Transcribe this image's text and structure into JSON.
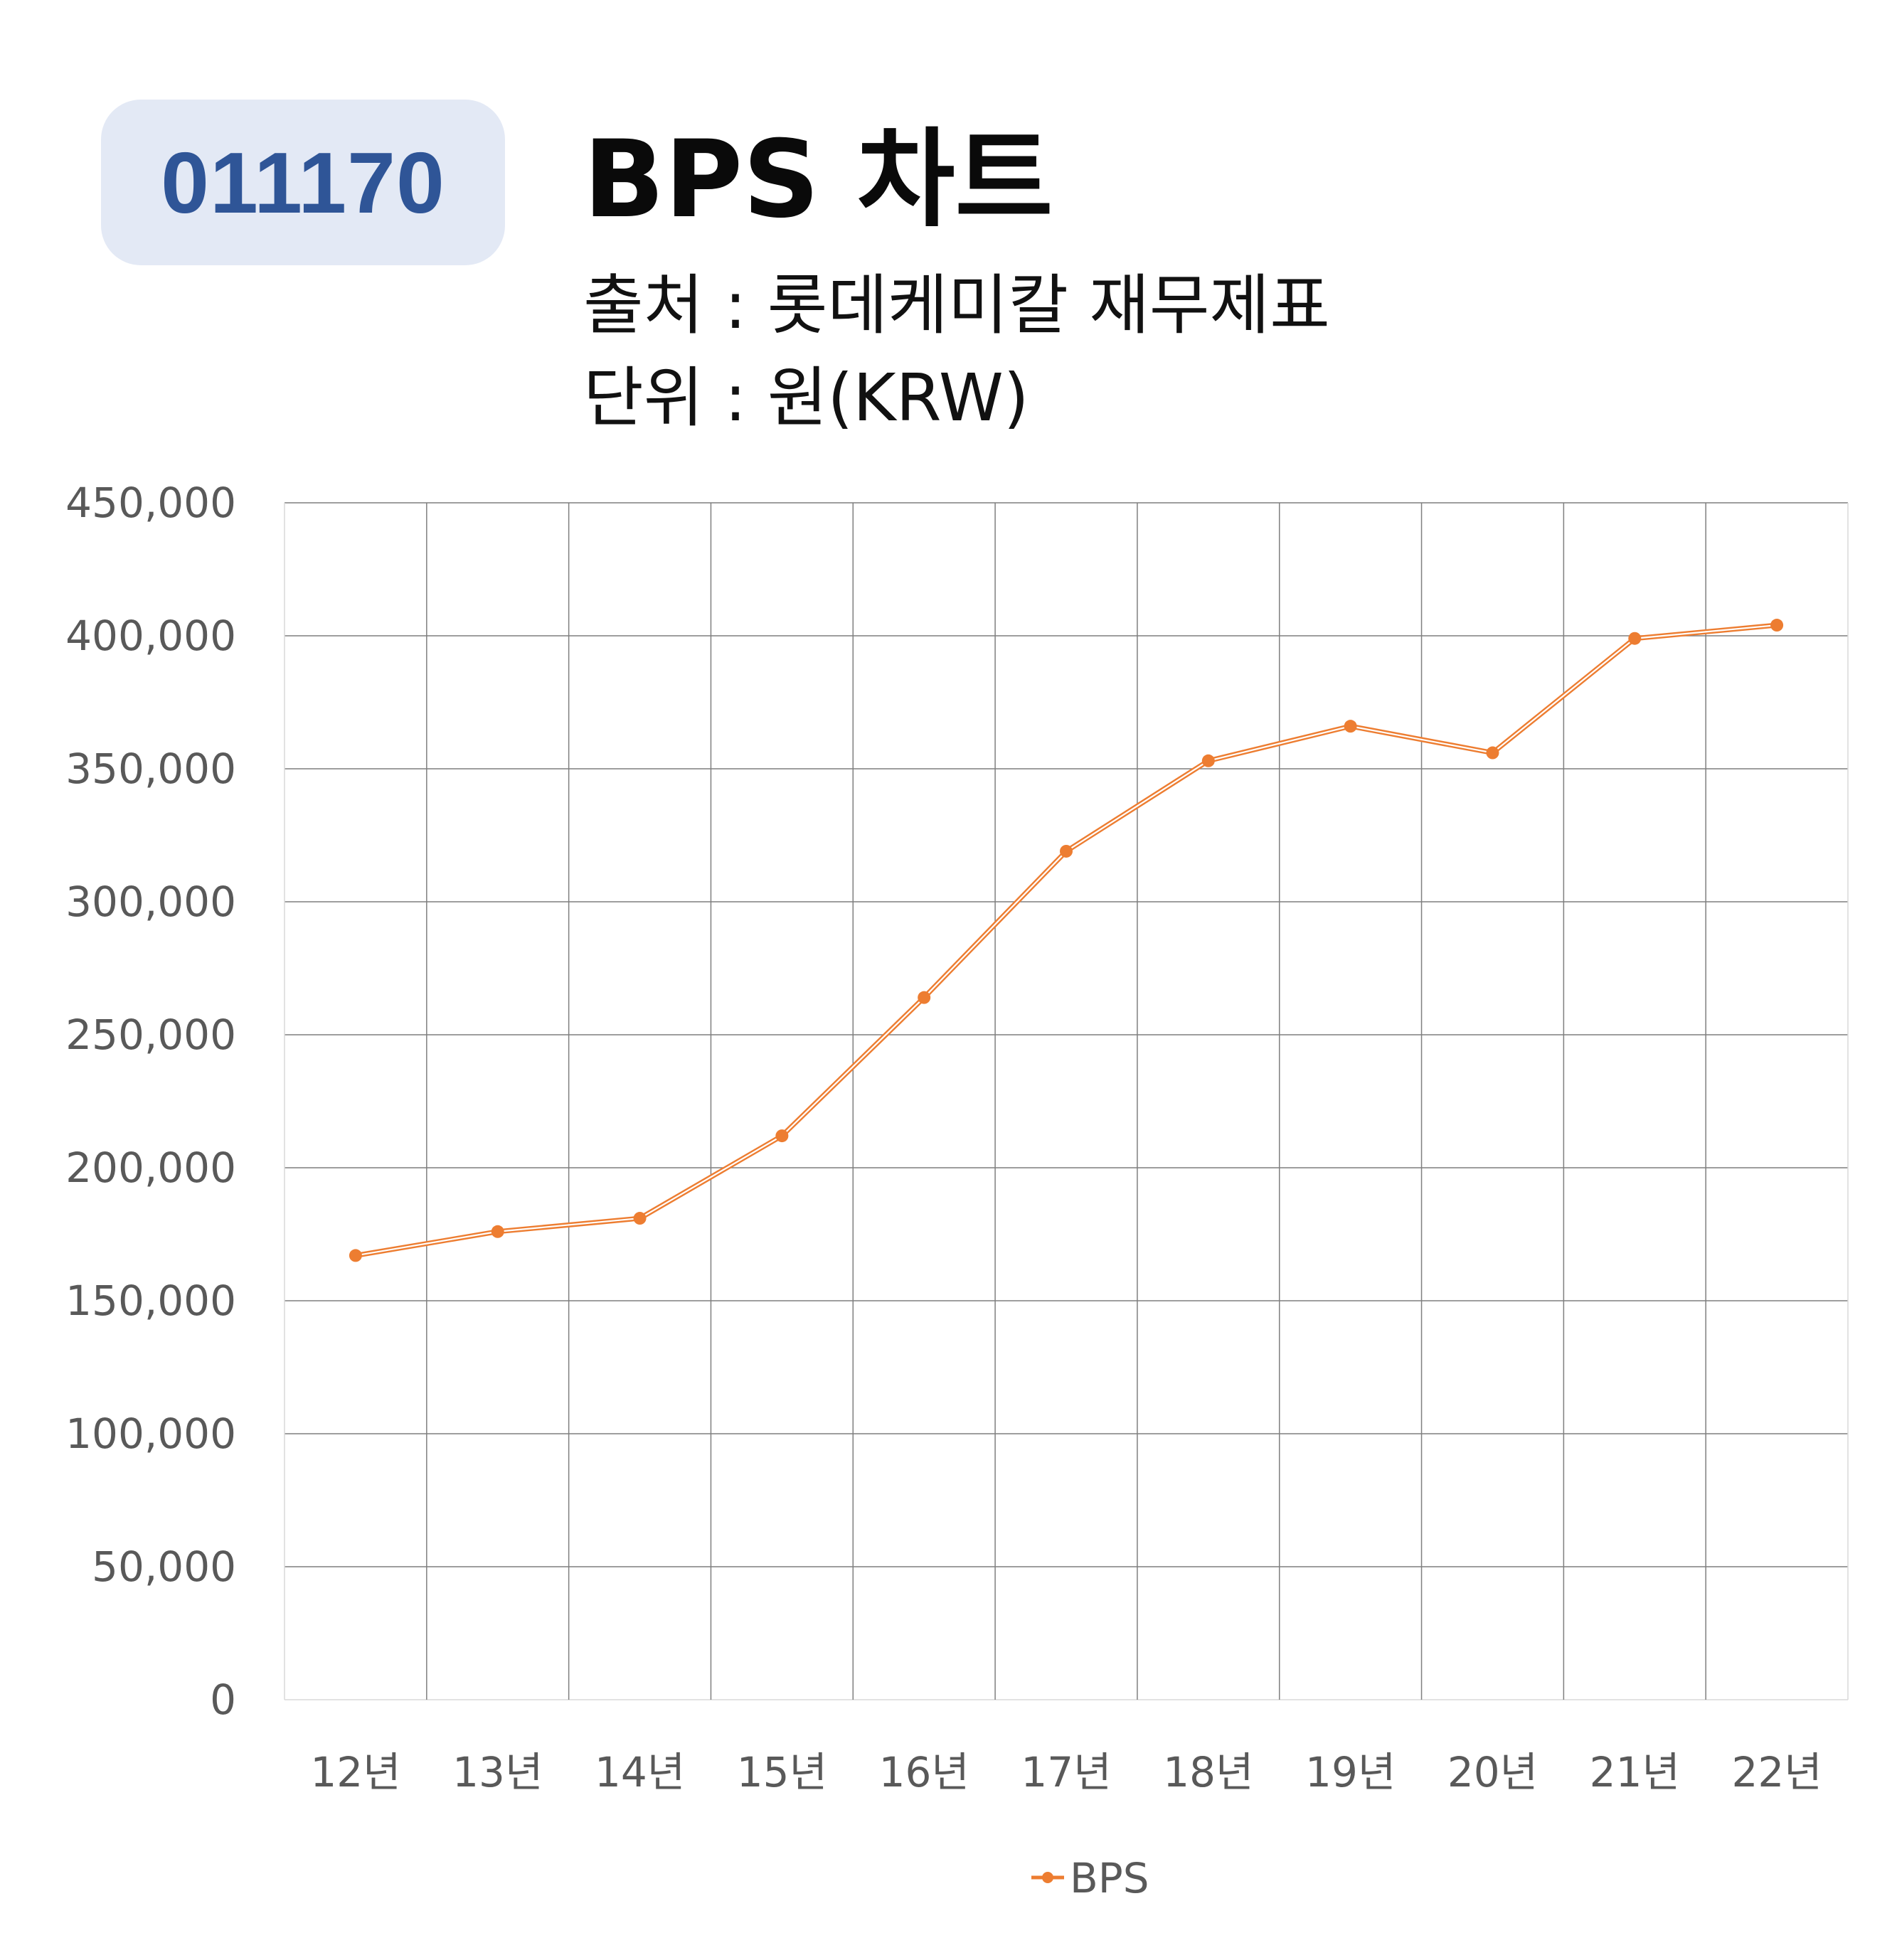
{
  "badge": {
    "code": "011170"
  },
  "header": {
    "title": "BPS 차트",
    "source_line": "출처 : 롯데케미칼 재무제표",
    "unit_line": "단위 : 원(KRW)"
  },
  "colors": {
    "line": "#ed7d31",
    "grid": "#7f7f7f",
    "badge_bg": "#e3e9f5",
    "badge_text": "#2f5597",
    "tick_text": "#595959"
  },
  "chart_data": {
    "type": "line",
    "categories": [
      "12년",
      "13년",
      "14년",
      "15년",
      "16년",
      "17년",
      "18년",
      "19년",
      "20년",
      "21년",
      "22년"
    ],
    "series": [
      {
        "name": "BPS",
        "values": [
          167000,
          176000,
          181000,
          212000,
          264000,
          319000,
          353000,
          366000,
          356000,
          399000,
          404000
        ]
      }
    ],
    "ylim": [
      0,
      450000
    ],
    "y_ticks": [
      0,
      50000,
      100000,
      150000,
      200000,
      250000,
      300000,
      350000,
      400000,
      450000
    ],
    "y_tick_labels": [
      "0",
      "50,000",
      "100,000",
      "150,000",
      "200,000",
      "250,000",
      "300,000",
      "350,000",
      "400,000",
      "450,000"
    ],
    "grid": true,
    "legend_position": "bottom",
    "markers": true
  }
}
